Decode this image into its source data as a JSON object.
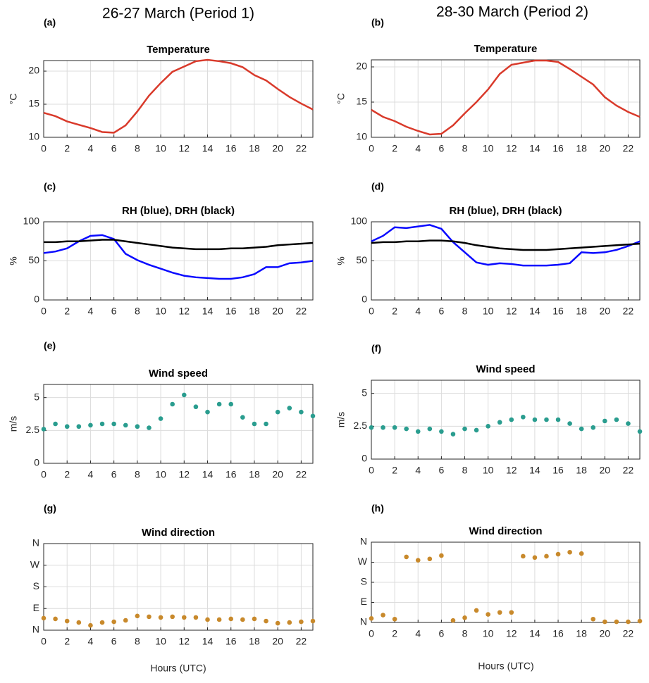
{
  "columns": [
    {
      "title": "26-27 March (Period 1)",
      "xlabel": "Hours (UTC)"
    },
    {
      "title": "28-30 March (Period 2)",
      "xlabel": "Hours (UTC)"
    }
  ],
  "chart_data": [
    {
      "type": "line",
      "panel": "(a)",
      "title": "Temperature",
      "ylabel": "°C",
      "x": [
        0,
        1,
        2,
        3,
        4,
        5,
        6,
        7,
        8,
        9,
        10,
        11,
        12,
        13,
        14,
        15,
        16,
        17,
        18,
        19,
        20,
        21,
        22,
        23
      ],
      "series": [
        {
          "name": "Temperature",
          "color": "#d93a2b",
          "values": [
            13.7,
            13.2,
            12.4,
            11.9,
            11.4,
            10.8,
            10.7,
            11.8,
            13.9,
            16.3,
            18.2,
            19.9,
            20.7,
            21.5,
            21.7,
            21.5,
            21.2,
            20.6,
            19.4,
            18.6,
            17.3,
            16.1,
            15.1,
            14.2
          ]
        }
      ],
      "xlim": [
        0,
        23
      ],
      "xticks": [
        0,
        2,
        4,
        6,
        8,
        10,
        12,
        14,
        16,
        18,
        20,
        22
      ],
      "ylim": [
        10,
        21.6
      ],
      "yticks": [
        10,
        15,
        20
      ],
      "grid": true
    },
    {
      "type": "line",
      "panel": "(b)",
      "title": "Temperature",
      "ylabel": "°C",
      "x": [
        0,
        1,
        2,
        3,
        4,
        5,
        6,
        7,
        8,
        9,
        10,
        11,
        12,
        13,
        14,
        15,
        16,
        17,
        18,
        19,
        20,
        21,
        22,
        23
      ],
      "series": [
        {
          "name": "Temperature",
          "color": "#d93a2b",
          "values": [
            13.9,
            12.9,
            12.3,
            11.5,
            10.9,
            10.4,
            10.5,
            11.7,
            13.4,
            15.0,
            16.8,
            19.0,
            20.3,
            20.6,
            20.9,
            20.9,
            20.7,
            19.7,
            18.6,
            17.5,
            15.7,
            14.5,
            13.6,
            12.9
          ]
        }
      ],
      "xlim": [
        0,
        23
      ],
      "xticks": [
        0,
        2,
        4,
        6,
        8,
        10,
        12,
        14,
        16,
        18,
        20,
        22
      ],
      "ylim": [
        10,
        21
      ],
      "yticks": [
        10,
        15,
        20
      ],
      "grid": true
    },
    {
      "type": "line",
      "panel": "(c)",
      "title": "RH (blue), DRH (black)",
      "ylabel": "%",
      "x": [
        0,
        1,
        2,
        3,
        4,
        5,
        6,
        7,
        8,
        9,
        10,
        11,
        12,
        13,
        14,
        15,
        16,
        17,
        18,
        19,
        20,
        21,
        22,
        23
      ],
      "series": [
        {
          "name": "RH",
          "color": "#0a0aff",
          "values": [
            60,
            62,
            66,
            75,
            82,
            83,
            78,
            59,
            51,
            45,
            40,
            35,
            31,
            29,
            28,
            27,
            27,
            29,
            33,
            42,
            42,
            47,
            48,
            50
          ]
        },
        {
          "name": "DRH",
          "color": "#000000",
          "values": [
            74,
            74,
            75,
            75,
            76,
            77,
            77,
            75,
            73,
            71,
            69,
            67,
            66,
            65,
            65,
            65,
            66,
            66,
            67,
            68,
            70,
            71,
            72,
            73
          ]
        }
      ],
      "xlim": [
        0,
        23
      ],
      "xticks": [
        0,
        2,
        4,
        6,
        8,
        10,
        12,
        14,
        16,
        18,
        20,
        22
      ],
      "ylim": [
        0,
        100
      ],
      "yticks": [
        0,
        50,
        100
      ],
      "grid": true
    },
    {
      "type": "line",
      "panel": "(d)",
      "title": "RH (blue), DRH (black)",
      "ylabel": "%",
      "x": [
        0,
        1,
        2,
        3,
        4,
        5,
        6,
        7,
        8,
        9,
        10,
        11,
        12,
        13,
        14,
        15,
        16,
        17,
        18,
        19,
        20,
        21,
        22,
        23
      ],
      "series": [
        {
          "name": "RH",
          "color": "#0a0aff",
          "values": [
            75,
            82,
            93,
            92,
            94,
            96,
            91,
            74,
            61,
            48,
            45,
            47,
            46,
            44,
            44,
            44,
            45,
            47,
            61,
            60,
            61,
            64,
            69,
            75
          ]
        },
        {
          "name": "DRH",
          "color": "#000000",
          "values": [
            73,
            74,
            74,
            75,
            75,
            76,
            76,
            75,
            73,
            70,
            68,
            66,
            65,
            64,
            64,
            64,
            65,
            66,
            67,
            68,
            69,
            70,
            71,
            72
          ]
        }
      ],
      "xlim": [
        0,
        23
      ],
      "xticks": [
        0,
        2,
        4,
        6,
        8,
        10,
        12,
        14,
        16,
        18,
        20,
        22
      ],
      "ylim": [
        0,
        100
      ],
      "yticks": [
        0,
        50,
        100
      ],
      "grid": true
    },
    {
      "type": "scatter",
      "panel": "(e)",
      "title": "Wind speed",
      "ylabel": "m/s",
      "x": [
        0,
        1,
        2,
        3,
        4,
        5,
        6,
        7,
        8,
        9,
        10,
        11,
        12,
        13,
        14,
        15,
        16,
        17,
        18,
        19,
        20,
        21,
        22,
        23
      ],
      "series": [
        {
          "name": "Wind speed",
          "color": "#2a9d8f",
          "values": [
            2.6,
            3.0,
            2.8,
            2.8,
            2.9,
            3.0,
            3.0,
            2.9,
            2.8,
            2.7,
            3.4,
            4.5,
            5.2,
            4.3,
            3.9,
            4.5,
            4.5,
            3.5,
            3.0,
            3.0,
            3.9,
            4.2,
            3.9,
            3.6
          ]
        }
      ],
      "xlim": [
        0,
        23
      ],
      "xticks": [
        0,
        2,
        4,
        6,
        8,
        10,
        12,
        14,
        16,
        18,
        20,
        22
      ],
      "ylim": [
        0,
        6
      ],
      "yticks": [
        0,
        2.5,
        5
      ],
      "grid": true
    },
    {
      "type": "scatter",
      "panel": "(f)",
      "title": "Wind speed",
      "ylabel": "m/s",
      "x": [
        0,
        1,
        2,
        3,
        4,
        5,
        6,
        7,
        8,
        9,
        10,
        11,
        12,
        13,
        14,
        15,
        16,
        17,
        18,
        19,
        20,
        21,
        22,
        23
      ],
      "series": [
        {
          "name": "Wind speed",
          "color": "#2a9d8f",
          "values": [
            2.4,
            2.4,
            2.4,
            2.3,
            2.1,
            2.3,
            2.1,
            1.9,
            2.3,
            2.2,
            2.5,
            2.8,
            3.0,
            3.2,
            3.0,
            3.0,
            3.0,
            2.7,
            2.3,
            2.4,
            2.9,
            3.0,
            2.7,
            2.1
          ]
        }
      ],
      "xlim": [
        0,
        23
      ],
      "xticks": [
        0,
        2,
        4,
        6,
        8,
        10,
        12,
        14,
        16,
        18,
        20,
        22
      ],
      "ylim": [
        0,
        6
      ],
      "yticks": [
        0,
        2.5,
        5
      ],
      "grid": true
    },
    {
      "type": "scatter",
      "panel": "(g)",
      "title": "Wind direction",
      "x": [
        0,
        1,
        2,
        3,
        4,
        5,
        6,
        7,
        8,
        9,
        10,
        11,
        12,
        13,
        14,
        15,
        16,
        17,
        18,
        19,
        20,
        21,
        22,
        23
      ],
      "series": [
        {
          "name": "Wind direction",
          "color": "#c8892b",
          "values": [
            50,
            47,
            38,
            32,
            20,
            32,
            35,
            41,
            59,
            56,
            53,
            56,
            53,
            53,
            44,
            44,
            47,
            44,
            47,
            38,
            29,
            32,
            35,
            38
          ]
        }
      ],
      "xlim": [
        0,
        23
      ],
      "xticks": [
        0,
        2,
        4,
        6,
        8,
        10,
        12,
        14,
        16,
        18,
        20,
        22
      ],
      "ylim": [
        0,
        360
      ],
      "yticks": [
        {
          "value": 0,
          "label": "N"
        },
        {
          "value": 90,
          "label": "E"
        },
        {
          "value": 180,
          "label": "S"
        },
        {
          "value": 270,
          "label": "W"
        },
        {
          "value": 360,
          "label": "N"
        }
      ],
      "grid": true
    },
    {
      "type": "scatter",
      "panel": "(h)",
      "title": "Wind direction",
      "x": [
        0,
        1,
        2,
        3,
        4,
        5,
        6,
        7,
        8,
        9,
        10,
        11,
        12,
        13,
        14,
        15,
        16,
        17,
        18,
        19,
        20,
        21,
        22,
        23
      ],
      "series": [
        {
          "name": "Wind direction",
          "color": "#c8892b",
          "values": [
            18,
            33,
            15,
            294,
            279,
            285,
            300,
            9,
            21,
            54,
            36,
            45,
            45,
            297,
            291,
            297,
            306,
            315,
            309,
            15,
            3,
            3,
            3,
            6
          ]
        }
      ],
      "xlim": [
        0,
        23
      ],
      "xticks": [
        0,
        2,
        4,
        6,
        8,
        10,
        12,
        14,
        16,
        18,
        20,
        22
      ],
      "ylim": [
        0,
        360
      ],
      "yticks": [
        {
          "value": 0,
          "label": "N"
        },
        {
          "value": 90,
          "label": "E"
        },
        {
          "value": 180,
          "label": "S"
        },
        {
          "value": 270,
          "label": "W"
        },
        {
          "value": 360,
          "label": "N"
        }
      ],
      "grid": true
    }
  ]
}
